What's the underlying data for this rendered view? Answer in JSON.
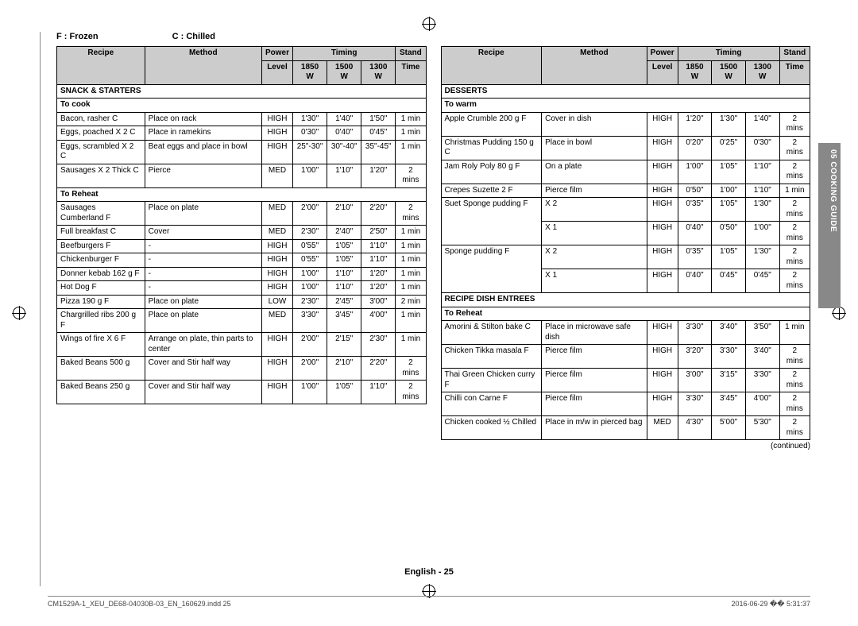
{
  "legend": {
    "frozen": "F : Frozen",
    "chilled": "C : Chilled"
  },
  "headers": {
    "recipe": "Recipe",
    "method": "Method",
    "power": "Power",
    "level": "Level",
    "timing": "Timing",
    "w1": "1850 W",
    "w2": "1500 W",
    "w3": "1300 W",
    "stand": "Stand",
    "time": "Time"
  },
  "left": {
    "sections": [
      {
        "title": "SNACK & STARTERS"
      },
      {
        "title": "To cook"
      },
      {
        "rows": [
          [
            "Bacon, rasher C",
            "Place on rack",
            "HIGH",
            "1'30\"",
            "1'40\"",
            "1'50\"",
            "1 min"
          ],
          [
            "Eggs, poached X 2 C",
            "Place in ramekins",
            "HIGH",
            "0'30\"",
            "0'40\"",
            "0'45\"",
            "1 min"
          ],
          [
            "Eggs, scrambled X 2 C",
            "Beat eggs and place in bowl",
            "HIGH",
            "25\"-30\"",
            "30\"-40\"",
            "35\"-45\"",
            "1 min"
          ],
          [
            "Sausages X 2 Thick C",
            "Pierce",
            "MED",
            "1'00\"",
            "1'10\"",
            "1'20\"",
            "2 mins"
          ]
        ]
      },
      {
        "title": "To Reheat"
      },
      {
        "rows": [
          [
            "Sausages Cumberland F",
            "Place on plate",
            "MED",
            "2'00\"",
            "2'10\"",
            "2'20\"",
            "2 mins"
          ],
          [
            "Full breakfast C",
            "Cover",
            "MED",
            "2'30\"",
            "2'40\"",
            "2'50\"",
            "1 min"
          ],
          [
            "Beefburgers F",
            "-",
            "HIGH",
            "0'55\"",
            "1'05\"",
            "1'10\"",
            "1 min"
          ],
          [
            "Chickenburger F",
            "-",
            "HIGH",
            "0'55\"",
            "1'05\"",
            "1'10\"",
            "1 min"
          ],
          [
            "Donner kebab 162 g F",
            "-",
            "HIGH",
            "1'00\"",
            "1'10\"",
            "1'20\"",
            "1 min"
          ],
          [
            "Hot Dog F",
            "-",
            "HIGH",
            "1'00\"",
            "1'10\"",
            "1'20\"",
            "1 min"
          ],
          [
            "Pizza 190 g F",
            "Place on plate",
            "LOW",
            "2'30\"",
            "2'45\"",
            "3'00\"",
            "2 min"
          ],
          [
            "Chargrilled ribs 200 g F",
            "Place on plate",
            "MED",
            "3'30\"",
            "3'45\"",
            "4'00\"",
            "1 min"
          ],
          [
            "Wings of fire X 6 F",
            "Arrange on plate, thin parts to center",
            "HIGH",
            "2'00\"",
            "2'15\"",
            "2'30\"",
            "1 min"
          ],
          [
            "Baked Beans 500 g",
            "Cover and Stir half way",
            "HIGH",
            "2'00\"",
            "2'10\"",
            "2'20\"",
            "2 mins"
          ],
          [
            "Baked Beans 250 g",
            "Cover and Stir half way",
            "HIGH",
            "1'00\"",
            "1'05\"",
            "1'10\"",
            "2 mins"
          ]
        ]
      }
    ]
  },
  "right": {
    "sections": [
      {
        "title": "DESSERTS"
      },
      {
        "title": "To warm"
      },
      {
        "rows": [
          [
            "Apple Crumble 200 g F",
            "Cover in dish",
            "HIGH",
            "1'20\"",
            "1'30\"",
            "1'40\"",
            "2 mins"
          ],
          [
            "Christmas Pudding 150 g C",
            "Place in bowl",
            "HIGH",
            "0'20\"",
            "0'25\"",
            "0'30\"",
            "2 mins"
          ],
          [
            "Jam Roly Poly 80 g F",
            "On a plate",
            "HIGH",
            "1'00\"",
            "1'05\"",
            "1'10\"",
            "2 mins"
          ],
          [
            "Crepes Suzette 2 F",
            "Pierce film",
            "HIGH",
            "0'50\"",
            "1'00\"",
            "1'10\"",
            "1 min"
          ]
        ]
      },
      {
        "multi": [
          [
            "Suet Sponge pudding F",
            "X 2",
            "HIGH",
            "0'35\"",
            "1'05\"",
            "1'30\"",
            "2 mins"
          ],
          [
            "",
            "X 1",
            "HIGH",
            "0'40\"",
            "0'50\"",
            "1'00\"",
            "2 mins"
          ]
        ]
      },
      {
        "multi": [
          [
            "Sponge pudding F",
            "X 2",
            "HIGH",
            "0'35\"",
            "1'05\"",
            "1'30\"",
            "2 mins"
          ],
          [
            "",
            "X 1",
            "HIGH",
            "0'40\"",
            "0'45\"",
            "0'45\"",
            "2 mins"
          ]
        ]
      },
      {
        "title": "RECIPE DISH ENTREES"
      },
      {
        "title": "To Reheat"
      },
      {
        "rows": [
          [
            "Amorini & Stilton bake C",
            "Place in microwave safe dish",
            "HIGH",
            "3'30\"",
            "3'40\"",
            "3'50\"",
            "1 min"
          ],
          [
            "Chicken Tikka masala F",
            "Pierce film",
            "HIGH",
            "3'20\"",
            "3'30\"",
            "3'40\"",
            "2 mins"
          ],
          [
            "Thai Green Chicken curry F",
            "Pierce film",
            "HIGH",
            "3'00\"",
            "3'15\"",
            "3'30\"",
            "2 mins"
          ],
          [
            "Chilli con Carne F",
            "Pierce film",
            "HIGH",
            "3'30\"",
            "3'45\"",
            "4'00\"",
            "2 mins"
          ],
          [
            "Chicken cooked ½ Chilled",
            "Place in m/w in pierced bag",
            "MED",
            "4'30\"",
            "5'00\"",
            "5'30\"",
            "2 mins"
          ]
        ]
      }
    ],
    "continued": "(continued)"
  },
  "sidetab": "05  COOKING GUIDE",
  "pagenum": "English - 25",
  "footer": {
    "left": "CM1529A-1_XEU_DE68-04030B-03_EN_160629.indd   25",
    "right": "2016-06-29   �� 5:31:37"
  },
  "style": {
    "header_bg": "#ccc",
    "border": "#000",
    "sidetab_bg": "#888"
  }
}
